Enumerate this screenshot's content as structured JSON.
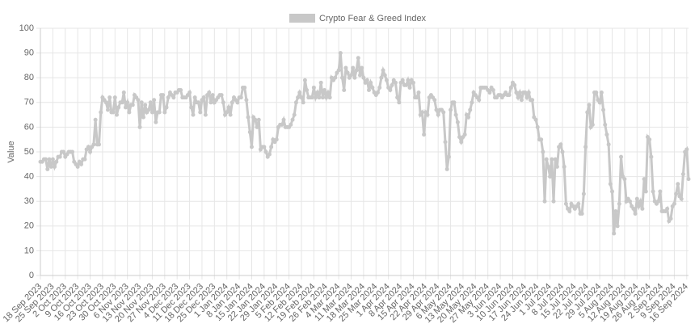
{
  "chart_data": {
    "type": "line",
    "legend": "top",
    "grid": true,
    "y_label": "Value",
    "ylim": [
      0,
      100
    ],
    "yticks": [
      0,
      10,
      20,
      30,
      40,
      50,
      60,
      70,
      80,
      90,
      100
    ],
    "categories": [
      "18 Sep 2023",
      null,
      null,
      null,
      null,
      null,
      null,
      "25 Sep 2023",
      null,
      null,
      null,
      null,
      null,
      null,
      "2 Oct 2023",
      null,
      null,
      null,
      null,
      null,
      null,
      "9 Oct 2023",
      null,
      null,
      null,
      null,
      null,
      null,
      "16 Oct 2023",
      null,
      null,
      null,
      null,
      null,
      null,
      "23 Oct 2023",
      null,
      null,
      null,
      null,
      null,
      null,
      "30 Oct 2023",
      null,
      null,
      null,
      null,
      null,
      null,
      "6 Nov 2023",
      null,
      null,
      null,
      null,
      null,
      null,
      "13 Nov 2023",
      null,
      null,
      null,
      null,
      null,
      null,
      "20 Nov 2023",
      null,
      null,
      null,
      null,
      null,
      null,
      "27 Nov 2023",
      null,
      null,
      null,
      null,
      null,
      null,
      "4 Dec 2023",
      null,
      null,
      null,
      null,
      null,
      null,
      "11 Dec 2023",
      null,
      null,
      null,
      null,
      null,
      null,
      "18 Dec 2023",
      null,
      null,
      null,
      null,
      null,
      null,
      "25 Dec 2023",
      null,
      null,
      null,
      null,
      null,
      null,
      "1 Jan 2024",
      null,
      null,
      null,
      null,
      null,
      null,
      "8 Jan 2024",
      null,
      null,
      null,
      null,
      null,
      null,
      "15 Jan 2024",
      null,
      null,
      null,
      null,
      null,
      null,
      "22 Jan 2024",
      null,
      null,
      null,
      null,
      null,
      null,
      "29 Jan 2024",
      null,
      null,
      null,
      null,
      null,
      null,
      "5 Feb 2024",
      null,
      null,
      null,
      null,
      null,
      null,
      "12 Feb 2024",
      null,
      null,
      null,
      null,
      null,
      null,
      "19 Feb 2024",
      null,
      null,
      null,
      null,
      null,
      null,
      "26 Feb 2024",
      null,
      null,
      null,
      null,
      null,
      null,
      "4 Mar 2024",
      null,
      null,
      null,
      null,
      null,
      null,
      "11 Mar 2024",
      null,
      null,
      null,
      null,
      null,
      null,
      "18 Mar 2024",
      null,
      null,
      null,
      null,
      null,
      null,
      "25 Mar 2024",
      null,
      null,
      null,
      null,
      null,
      null,
      "1 Apr 2024",
      null,
      null,
      null,
      null,
      null,
      null,
      "8 Apr 2024",
      null,
      null,
      null,
      null,
      null,
      null,
      "15 Apr 2024",
      null,
      null,
      null,
      null,
      null,
      null,
      "22 Apr 2024",
      null,
      null,
      null,
      null,
      null,
      null,
      "29 Apr 2024",
      null,
      null,
      null,
      null,
      null,
      null,
      "6 May 2024",
      null,
      null,
      null,
      null,
      null,
      null,
      "13 May 2024",
      null,
      null,
      null,
      null,
      null,
      null,
      "20 May 2024",
      null,
      null,
      null,
      null,
      null,
      null,
      "27 May 2024",
      null,
      null,
      null,
      null,
      null,
      null,
      "3 Jun 2024",
      null,
      null,
      null,
      null,
      null,
      null,
      "10 Jun 2024",
      null,
      null,
      null,
      null,
      null,
      null,
      "17 Jun 2024",
      null,
      null,
      null,
      null,
      null,
      null,
      "24 Jun 2024",
      null,
      null,
      null,
      null,
      null,
      null,
      "1 Jul 2024",
      null,
      null,
      null,
      null,
      null,
      null,
      "8 Jul 2024",
      null,
      null,
      null,
      null,
      null,
      null,
      "15 Jul 2024",
      null,
      null,
      null,
      null,
      null,
      null,
      "22 Jul 2024",
      null,
      null,
      null,
      null,
      null,
      null,
      "29 Jul 2024",
      null,
      null,
      null,
      null,
      null,
      null,
      "5 Aug 2024",
      null,
      null,
      null,
      null,
      null,
      null,
      "12 Aug 2024",
      null,
      null,
      null,
      null,
      null,
      null,
      "19 Aug 2024",
      null,
      null,
      null,
      null,
      null,
      null,
      "26 Aug 2024",
      null,
      null,
      null,
      null,
      null,
      null,
      "2 Sep 2024",
      null,
      null,
      null,
      null,
      null,
      null,
      "9 Sep 2024",
      null,
      null,
      null,
      null,
      null,
      null,
      "16 Sep 2024",
      null
    ],
    "series": [
      {
        "name": "Crypto Fear & Greed Index",
        "color": "#c8c8c8",
        "values": [
          46,
          46,
          47,
          47,
          43,
          47,
          44,
          47,
          44,
          46,
          48,
          48,
          50,
          50,
          48,
          49,
          50,
          50,
          50,
          46,
          45,
          44,
          46,
          45,
          47,
          47,
          51,
          52,
          50,
          52,
          53,
          63,
          53,
          53,
          66,
          72,
          71,
          70,
          67,
          72,
          66,
          66,
          72,
          65,
          68,
          70,
          70,
          74,
          68,
          70,
          66,
          69,
          69,
          73,
          72,
          71,
          60,
          70,
          64,
          69,
          66,
          67,
          70,
          66,
          71,
          62,
          66,
          66,
          73,
          73,
          66,
          68,
          72,
          74,
          73,
          72,
          74,
          74,
          75,
          75,
          72,
          72,
          72,
          73,
          74,
          68,
          65,
          72,
          70,
          70,
          66,
          71,
          72,
          65,
          73,
          74,
          70,
          73,
          70,
          71,
          72,
          73,
          73,
          70,
          65,
          66,
          68,
          65,
          70,
          72,
          71,
          70,
          72,
          72,
          76,
          76,
          71,
          64,
          58,
          52,
          64,
          63,
          60,
          63,
          51,
          52,
          52,
          50,
          48,
          49,
          52,
          55,
          54,
          55,
          60,
          61,
          61,
          63,
          60,
          60,
          60,
          61,
          63,
          65,
          70,
          72,
          74,
          72,
          70,
          79,
          75,
          72,
          72,
          72,
          76,
          72,
          74,
          72,
          78,
          72,
          75,
          72,
          74,
          72,
          80,
          79,
          80,
          82,
          83,
          90,
          80,
          75,
          84,
          82,
          80,
          81,
          84,
          80,
          83,
          88,
          81,
          84,
          80,
          78,
          79,
          75,
          78,
          76,
          74,
          73,
          74,
          76,
          80,
          83,
          81,
          79,
          76,
          75,
          77,
          79,
          78,
          72,
          70,
          78,
          79,
          77,
          77,
          79,
          76,
          79,
          78,
          72,
          72,
          74,
          65,
          66,
          57,
          66,
          65,
          72,
          73,
          72,
          71,
          67,
          65,
          67,
          67,
          66,
          54,
          43,
          48,
          67,
          70,
          70,
          65,
          62,
          56,
          54,
          56,
          57,
          65,
          64,
          67,
          70,
          74,
          73,
          72,
          71,
          76,
          76,
          76,
          76,
          75,
          74,
          76,
          75,
          72,
          72,
          73,
          73,
          72,
          73,
          74,
          73,
          73,
          76,
          78,
          77,
          74,
          72,
          74,
          71,
          74,
          74,
          72,
          74,
          71,
          71,
          64,
          63,
          60,
          55,
          55,
          50,
          30,
          47,
          44,
          40,
          47,
          30,
          47,
          44,
          52,
          53,
          50,
          44,
          29,
          27,
          26,
          29,
          28,
          27,
          28,
          29,
          25,
          25,
          33,
          52,
          66,
          69,
          60,
          61,
          74,
          74,
          71,
          70,
          74,
          67,
          61,
          57,
          53,
          37,
          34,
          17,
          26,
          20,
          29,
          48,
          40,
          39,
          30,
          31,
          30,
          28,
          27,
          25,
          31,
          28,
          30,
          27,
          39,
          34,
          56,
          55,
          48,
          34,
          30,
          29,
          30,
          34,
          26,
          26,
          26,
          27,
          22,
          23,
          28,
          29,
          33,
          37,
          32,
          31,
          41,
          50,
          51,
          39
        ]
      }
    ]
  }
}
